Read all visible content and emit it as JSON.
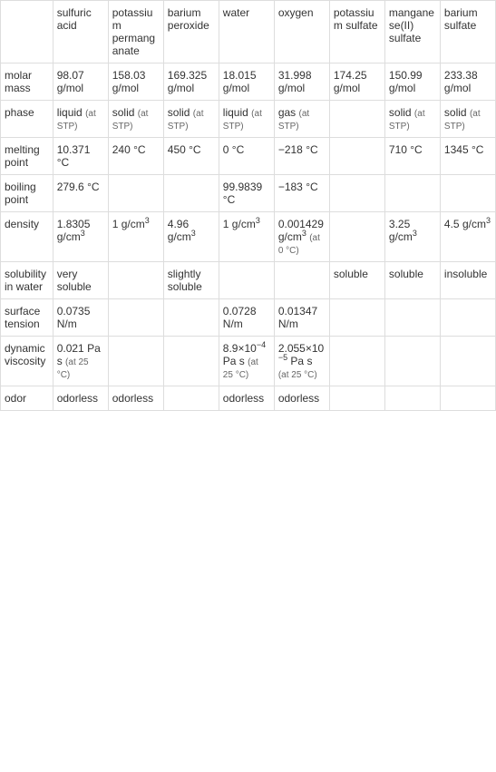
{
  "columns": [
    "",
    "sulfuric acid",
    "potassium permanganate",
    "barium peroxide",
    "water",
    "oxygen",
    "potassium sulfate",
    "manganese(II) sulfate",
    "barium sulfate"
  ],
  "rows": [
    {
      "header": "molar mass",
      "cells": [
        "98.07 g/mol",
        "158.03 g/mol",
        "169.325 g/mol",
        "18.015 g/mol",
        "31.998 g/mol",
        "174.25 g/mol",
        "150.99 g/mol",
        "233.38 g/mol"
      ]
    },
    {
      "header": "phase",
      "cells": [
        {
          "main": "liquid",
          "sub": "(at STP)"
        },
        {
          "main": "solid",
          "sub": "(at STP)"
        },
        {
          "main": "solid",
          "sub": "(at STP)"
        },
        {
          "main": "liquid",
          "sub": "(at STP)"
        },
        {
          "main": "gas",
          "sub": "(at STP)"
        },
        "",
        {
          "main": "solid",
          "sub": "(at STP)"
        },
        {
          "main": "solid",
          "sub": "(at STP)"
        }
      ]
    },
    {
      "header": "melting point",
      "cells": [
        "10.371 °C",
        "240 °C",
        "450 °C",
        "0 °C",
        "−218 °C",
        "",
        "710 °C",
        "1345 °C"
      ]
    },
    {
      "header": "boiling point",
      "cells": [
        "279.6 °C",
        "",
        "",
        "99.9839 °C",
        "−183 °C",
        "",
        "",
        ""
      ]
    },
    {
      "header": "density",
      "cells": [
        {
          "html": "1.8305 g/cm<sup>3</sup>"
        },
        {
          "html": "1 g/cm<sup>3</sup>"
        },
        {
          "html": "4.96 g/cm<sup>3</sup>"
        },
        {
          "html": "1 g/cm<sup>3</sup>"
        },
        {
          "html": "0.001429 g/cm<sup>3</sup>",
          "sub": "(at 0 °C)"
        },
        "",
        {
          "html": "3.25 g/cm<sup>3</sup>"
        },
        {
          "html": "4.5 g/cm<sup>3</sup>"
        }
      ]
    },
    {
      "header": "solubility in water",
      "cells": [
        "very soluble",
        "",
        "slightly soluble",
        "",
        "",
        "soluble",
        "soluble",
        "insoluble"
      ]
    },
    {
      "header": "surface tension",
      "cells": [
        "0.0735 N/m",
        "",
        "",
        "0.0728 N/m",
        "0.01347 N/m",
        "",
        "",
        ""
      ]
    },
    {
      "header": "dynamic viscosity",
      "cells": [
        {
          "main": "0.021 Pa s",
          "sub": "(at 25 °C)"
        },
        "",
        "",
        {
          "html": "8.9×10<sup>−4</sup> Pa s",
          "sub": "(at 25 °C)"
        },
        {
          "html": "2.055×10<sup>−5</sup> Pa s",
          "sub": "(at 25 °C)"
        },
        "",
        "",
        ""
      ]
    },
    {
      "header": "odor",
      "cells": [
        "odorless",
        "odorless",
        "",
        "odorless",
        "odorless",
        "",
        "",
        ""
      ]
    }
  ]
}
